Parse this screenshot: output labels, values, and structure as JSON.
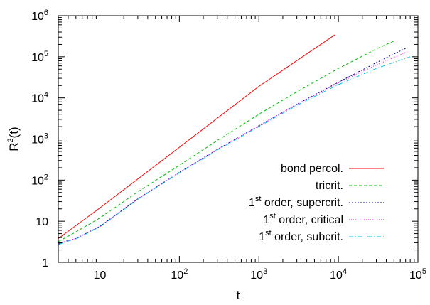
{
  "chart_data": {
    "type": "line",
    "title": "",
    "xlabel": "t",
    "ylabel": "R2(t)",
    "ylabel_parts": {
      "base": "R",
      "sup": "2",
      "rest": "(t)"
    },
    "xscale": "log",
    "yscale": "log",
    "xlim": [
      3,
      100000
    ],
    "ylim": [
      1,
      1000000
    ],
    "grid": false,
    "legend_position": "bottom-right",
    "x_ticks": [
      {
        "value": 10,
        "base": "10",
        "sup": ""
      },
      {
        "value": 100,
        "base": "10",
        "sup": "2"
      },
      {
        "value": 1000,
        "base": "10",
        "sup": "3"
      },
      {
        "value": 10000,
        "base": "10",
        "sup": "4"
      },
      {
        "value": 100000,
        "base": "10",
        "sup": "5"
      }
    ],
    "y_ticks": [
      {
        "value": 1,
        "base": "1",
        "sup": ""
      },
      {
        "value": 10,
        "base": "10",
        "sup": ""
      },
      {
        "value": 100,
        "base": "10",
        "sup": "2"
      },
      {
        "value": 1000,
        "base": "10",
        "sup": "3"
      },
      {
        "value": 10000,
        "base": "10",
        "sup": "4"
      },
      {
        "value": 100000,
        "base": "10",
        "sup": "5"
      },
      {
        "value": 1000000,
        "base": "10",
        "sup": "6"
      }
    ],
    "series": [
      {
        "name": "bond percol.",
        "label_parts": {
          "pre": "",
          "sup": "",
          "text": "bond percol."
        },
        "color": "#ff0000",
        "dash": "",
        "x": [
          3,
          10,
          100,
          1000,
          9000
        ],
        "y": [
          3.8,
          21,
          630,
          19000,
          340000
        ]
      },
      {
        "name": "tricrit.",
        "label_parts": {
          "pre": "",
          "sup": "",
          "text": "tricrit."
        },
        "color": "#00c000",
        "dash": "4,3",
        "x": [
          3,
          5,
          10,
          30,
          100,
          300,
          1000,
          3000,
          10000,
          30000,
          50000
        ],
        "y": [
          3.2,
          5.5,
          12,
          52,
          230,
          920,
          4000,
          14000,
          52000,
          155000,
          240000
        ]
      },
      {
        "name": "1st order, supercrit.",
        "label_parts": {
          "pre": "1",
          "sup": "st",
          "text": " order, supercrit."
        },
        "color": "#0000a0",
        "dash": "2,2",
        "x": [
          3,
          4,
          5,
          10,
          30,
          100,
          300,
          1000,
          3000,
          10000,
          30000,
          70000
        ],
        "y": [
          2.8,
          3.4,
          3.8,
          7.5,
          35,
          155,
          560,
          2100,
          7000,
          24000,
          72000,
          160000
        ]
      },
      {
        "name": "1st order, critical",
        "label_parts": {
          "pre": "1",
          "sup": "st",
          "text": " order, critical"
        },
        "color": "#ff00ff",
        "dash": "1,2",
        "x": [
          3,
          4,
          5,
          10,
          30,
          100,
          300,
          1000,
          3000,
          10000,
          30000,
          75000
        ],
        "y": [
          2.8,
          3.4,
          3.8,
          7.5,
          35,
          155,
          560,
          2100,
          7000,
          23000,
          63000,
          135000
        ]
      },
      {
        "name": "1st order, subcrit.",
        "label_parts": {
          "pre": "1",
          "sup": "st",
          "text": " order, subcrit."
        },
        "color": "#00c0e0",
        "dash": "6,3,1,3",
        "x": [
          3,
          4,
          5,
          10,
          30,
          100,
          300,
          1000,
          3000,
          10000,
          30000,
          80000
        ],
        "y": [
          2.7,
          3.3,
          3.7,
          7.3,
          34,
          150,
          540,
          2000,
          6600,
          21000,
          52000,
          100000
        ]
      }
    ]
  }
}
